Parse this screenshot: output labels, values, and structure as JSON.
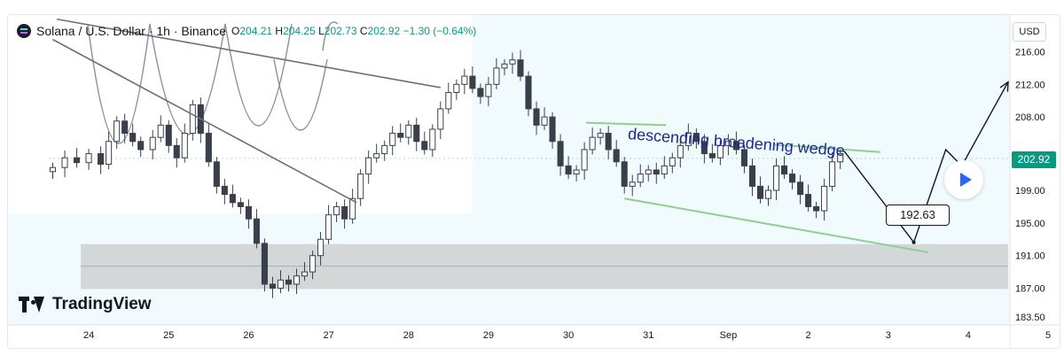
{
  "header": {
    "symbol_title": "Solana / U.S. Dollar · 1h · Binance",
    "open_key": "O",
    "open": "204.21",
    "high_key": "H",
    "high": "204.25",
    "low_key": "L",
    "low": "202.73",
    "close_key": "C",
    "close": "202.92",
    "change": "−1.30 (−0.64%)"
  },
  "currency_button": "USD",
  "last_price_label": "202.92",
  "brand": "TradingView",
  "icons": {
    "symbol": "solana-logo-icon",
    "brand": "tradingview-logo-icon",
    "play": "play-icon"
  },
  "colors": {
    "up": "#089981",
    "down": "#f23645",
    "candle": "#3a3f4b",
    "wedge": "#8fce8f",
    "support_zone": "#cfd3d4",
    "overlay": "#ffffff",
    "text": "#131722",
    "label": "#1b2a8f"
  },
  "annotations": {
    "pattern_label": "descending broadening wedge",
    "target_callout": "192.63"
  },
  "chart_data": {
    "type": "candlestick",
    "title": "Solana / U.S. Dollar · 1h · Binance",
    "x_tick_labels": [
      "24",
      "25",
      "26",
      "27",
      "28",
      "29",
      "30",
      "31",
      "Sep",
      "2",
      "3",
      "4",
      "5"
    ],
    "y_tick_values": [
      216.0,
      212.0,
      208.0,
      203.0,
      199.0,
      195.0,
      191.0,
      187.0,
      183.5
    ],
    "y_tick_labels": [
      "216.00",
      "212.00",
      "208.00",
      "203.00",
      "199.00",
      "195.00",
      "191.00",
      "187.00",
      "183.50"
    ],
    "ylim": [
      182.5,
      220.5
    ],
    "grid": false,
    "close_series": [
      [
        23.55,
        201.8
      ],
      [
        23.7,
        203.0
      ],
      [
        23.85,
        202.4
      ],
      [
        24.0,
        203.5
      ],
      [
        24.15,
        202.2
      ],
      [
        24.25,
        205.0
      ],
      [
        24.35,
        207.5
      ],
      [
        24.45,
        206.0
      ],
      [
        24.55,
        205.0
      ],
      [
        24.65,
        204.0
      ],
      [
        24.8,
        205.5
      ],
      [
        24.9,
        207.0
      ],
      [
        25.0,
        204.5
      ],
      [
        25.1,
        203.0
      ],
      [
        25.2,
        206.0
      ],
      [
        25.3,
        209.5
      ],
      [
        25.4,
        206.0
      ],
      [
        25.5,
        202.5
      ],
      [
        25.6,
        199.5
      ],
      [
        25.7,
        198.5
      ],
      [
        25.8,
        197.5
      ],
      [
        25.9,
        197.0
      ],
      [
        26.0,
        195.5
      ],
      [
        26.1,
        192.5
      ],
      [
        26.2,
        187.5
      ],
      [
        26.3,
        187.0
      ],
      [
        26.4,
        188.0
      ],
      [
        26.5,
        187.5
      ],
      [
        26.6,
        188.5
      ],
      [
        26.7,
        189.0
      ],
      [
        26.8,
        191.0
      ],
      [
        26.9,
        193.0
      ],
      [
        27.0,
        196.0
      ],
      [
        27.1,
        197.0
      ],
      [
        27.2,
        195.5
      ],
      [
        27.3,
        198.0
      ],
      [
        27.4,
        201.0
      ],
      [
        27.5,
        203.0
      ],
      [
        27.6,
        203.5
      ],
      [
        27.7,
        204.5
      ],
      [
        27.8,
        206.0
      ],
      [
        27.9,
        205.5
      ],
      [
        28.0,
        207.0
      ],
      [
        28.1,
        205.0
      ],
      [
        28.2,
        204.0
      ],
      [
        28.3,
        206.5
      ],
      [
        28.4,
        209.0
      ],
      [
        28.5,
        211.0
      ],
      [
        28.6,
        212.0
      ],
      [
        28.7,
        213.0
      ],
      [
        28.8,
        211.5
      ],
      [
        28.9,
        210.5
      ],
      [
        29.0,
        212.0
      ],
      [
        29.1,
        214.0
      ],
      [
        29.2,
        214.5
      ],
      [
        29.3,
        215.0
      ],
      [
        29.4,
        213.0
      ],
      [
        29.5,
        209.0
      ],
      [
        29.6,
        207.0
      ],
      [
        29.7,
        208.0
      ],
      [
        29.8,
        205.0
      ],
      [
        29.9,
        202.0
      ],
      [
        30.0,
        201.0
      ],
      [
        30.1,
        201.5
      ],
      [
        30.2,
        204.0
      ],
      [
        30.3,
        205.5
      ],
      [
        30.4,
        206.0
      ],
      [
        30.5,
        204.0
      ],
      [
        30.6,
        202.5
      ],
      [
        30.7,
        199.5
      ],
      [
        30.8,
        200.0
      ],
      [
        30.9,
        201.0
      ],
      [
        31.0,
        201.5
      ],
      [
        31.1,
        201.0
      ],
      [
        31.2,
        202.0
      ],
      [
        31.3,
        203.0
      ],
      [
        31.4,
        204.5
      ],
      [
        31.5,
        206.0
      ],
      [
        31.6,
        205.0
      ],
      [
        31.7,
        203.5
      ],
      [
        31.8,
        203.0
      ],
      [
        31.9,
        204.5
      ],
      [
        32.0,
        205.0
      ],
      [
        32.1,
        204.0
      ],
      [
        32.2,
        202.0
      ],
      [
        32.3,
        199.5
      ],
      [
        32.4,
        198.0
      ],
      [
        32.5,
        199.0
      ],
      [
        32.6,
        202.0
      ],
      [
        32.7,
        201.0
      ],
      [
        32.8,
        200.0
      ],
      [
        32.9,
        198.5
      ],
      [
        33.0,
        197.0
      ],
      [
        33.1,
        196.5
      ],
      [
        33.2,
        199.5
      ],
      [
        33.3,
        202.5
      ],
      [
        33.4,
        203.5
      ]
    ],
    "wedge_upper": [
      [
        30.22,
        207.3
      ],
      [
        31.22,
        207.0
      ]
    ],
    "wedge_upper_projection": [
      [
        32.58,
        204.6
      ],
      [
        33.9,
        203.7
      ]
    ],
    "wedge_lower": [
      [
        30.7,
        198.0
      ],
      [
        34.5,
        191.4
      ]
    ],
    "falling_trendline_upper": [
      [
        23.6,
        220.0
      ],
      [
        28.4,
        211.6
      ]
    ],
    "falling_trendline_lower": [
      [
        23.55,
        217.5
      ],
      [
        27.35,
        197.5
      ]
    ],
    "projected_path": [
      [
        33.45,
        203.8
      ],
      [
        34.32,
        192.63
      ],
      [
        34.72,
        204.0
      ],
      [
        34.92,
        202.0
      ],
      [
        35.5,
        212.3
      ]
    ],
    "support_zone": [
      186.9,
      192.4
    ],
    "support_midline": 189.7,
    "last_price": 202.92
  }
}
